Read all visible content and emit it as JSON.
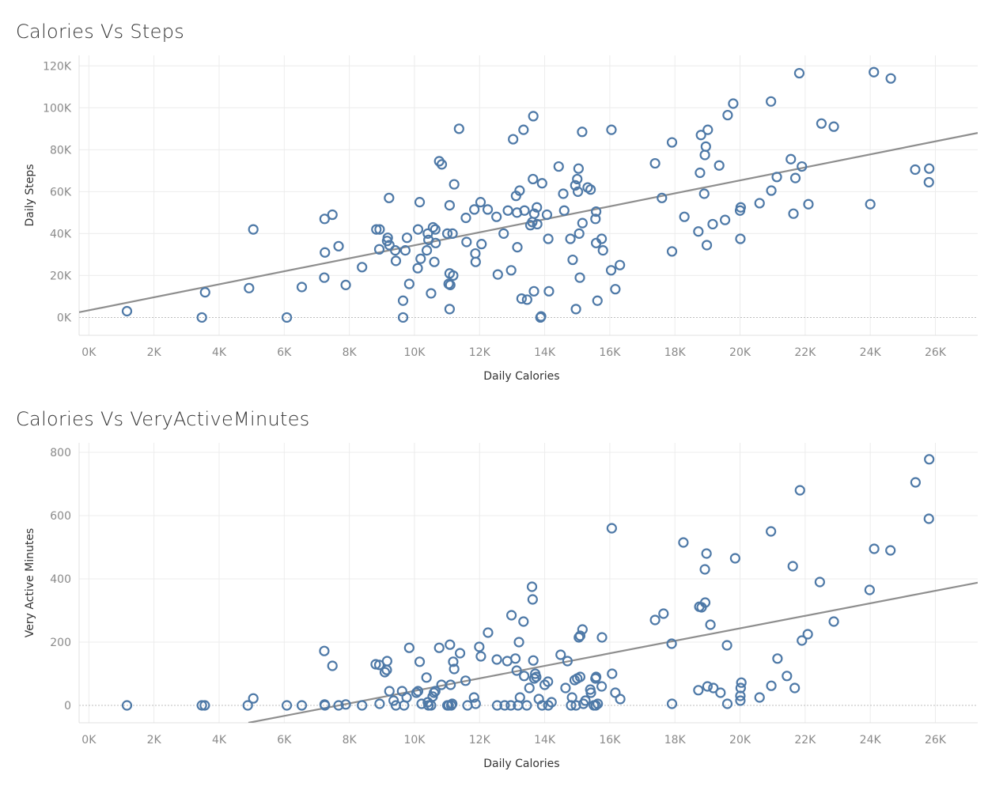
{
  "chart_data": [
    {
      "type": "scatter",
      "title": "Calories Vs Steps",
      "xlabel": "Daily Calories",
      "ylabel": "Daily Steps",
      "xlim": [
        -300,
        27300
      ],
      "ylim": [
        -8500,
        125000
      ],
      "x_ticks": [
        0,
        2000,
        4000,
        6000,
        8000,
        10000,
        12000,
        14000,
        16000,
        18000,
        20000,
        22000,
        24000,
        26000
      ],
      "x_tick_labels": [
        "0K",
        "2K",
        "4K",
        "6K",
        "8K",
        "10K",
        "12K",
        "14K",
        "16K",
        "18K",
        "20K",
        "22K",
        "24K",
        "26K"
      ],
      "y_ticks": [
        0,
        20000,
        40000,
        60000,
        80000,
        100000,
        120000
      ],
      "y_tick_labels": [
        "0K",
        "20K",
        "40K",
        "60K",
        "80K",
        "100K",
        "120K"
      ],
      "grid": true,
      "marker": "hollow-circle",
      "color": "#4e79a7",
      "trend_color": "#8e8e8e",
      "trendline": [
        [
          -300,
          2500
        ],
        [
          27300,
          88000
        ]
      ],
      "points": [
        [
          1170,
          3000
        ],
        [
          3470,
          0
        ],
        [
          3570,
          12000
        ],
        [
          4920,
          14000
        ],
        [
          5050,
          42000
        ],
        [
          6080,
          0
        ],
        [
          6540,
          14500
        ],
        [
          7240,
          47000
        ],
        [
          7250,
          31000
        ],
        [
          7230,
          19000
        ],
        [
          7480,
          49000
        ],
        [
          7670,
          34000
        ],
        [
          7890,
          15500
        ],
        [
          8390,
          24000
        ],
        [
          8830,
          42000
        ],
        [
          8930,
          42000
        ],
        [
          8920,
          32500
        ],
        [
          9160,
          36500
        ],
        [
          9180,
          38000
        ],
        [
          9220,
          57000
        ],
        [
          9230,
          34500
        ],
        [
          9410,
          32000
        ],
        [
          9430,
          27000
        ],
        [
          9650,
          8000
        ],
        [
          9650,
          0
        ],
        [
          9720,
          32000
        ],
        [
          9770,
          38000
        ],
        [
          9840,
          16000
        ],
        [
          10110,
          42000
        ],
        [
          10100,
          23500
        ],
        [
          10160,
          55000
        ],
        [
          10190,
          28000
        ],
        [
          10380,
          32000
        ],
        [
          10410,
          40000
        ],
        [
          10430,
          37000
        ],
        [
          10510,
          11500
        ],
        [
          10570,
          43000
        ],
        [
          10610,
          26500
        ],
        [
          10640,
          42000
        ],
        [
          10650,
          35500
        ],
        [
          10760,
          74500
        ],
        [
          10840,
          73000
        ],
        [
          11010,
          40000
        ],
        [
          11050,
          16000
        ],
        [
          11080,
          4000
        ],
        [
          11080,
          53500
        ],
        [
          11080,
          21000
        ],
        [
          11100,
          15500
        ],
        [
          11170,
          40000
        ],
        [
          11190,
          20000
        ],
        [
          11220,
          63500
        ],
        [
          11370,
          90000
        ],
        [
          11580,
          47500
        ],
        [
          11600,
          36000
        ],
        [
          11840,
          51500
        ],
        [
          11870,
          30500
        ],
        [
          11880,
          26500
        ],
        [
          12030,
          55000
        ],
        [
          12060,
          35000
        ],
        [
          12250,
          51500
        ],
        [
          12520,
          48000
        ],
        [
          12560,
          20500
        ],
        [
          12740,
          40000
        ],
        [
          12870,
          51000
        ],
        [
          12970,
          22500
        ],
        [
          13030,
          85000
        ],
        [
          13120,
          58000
        ],
        [
          13150,
          50000
        ],
        [
          13160,
          33500
        ],
        [
          13230,
          60500
        ],
        [
          13290,
          9000
        ],
        [
          13350,
          89500
        ],
        [
          13380,
          51000
        ],
        [
          13460,
          8500
        ],
        [
          13560,
          44000
        ],
        [
          13620,
          45500
        ],
        [
          13640,
          66000
        ],
        [
          13650,
          96000
        ],
        [
          13670,
          12500
        ],
        [
          13680,
          49500
        ],
        [
          13760,
          52500
        ],
        [
          13770,
          44500
        ],
        [
          13870,
          0
        ],
        [
          13890,
          500
        ],
        [
          13920,
          64000
        ],
        [
          14070,
          49000
        ],
        [
          14110,
          37500
        ],
        [
          14130,
          12500
        ],
        [
          14430,
          72000
        ],
        [
          14570,
          59000
        ],
        [
          14600,
          51000
        ],
        [
          14790,
          37500
        ],
        [
          14860,
          27500
        ],
        [
          14940,
          63000
        ],
        [
          14960,
          4000
        ],
        [
          15000,
          66000
        ],
        [
          15020,
          60000
        ],
        [
          15040,
          71000
        ],
        [
          15060,
          40000
        ],
        [
          15080,
          19000
        ],
        [
          15150,
          88500
        ],
        [
          15160,
          45000
        ],
        [
          15320,
          62000
        ],
        [
          15410,
          61000
        ],
        [
          15560,
          47000
        ],
        [
          15580,
          50500
        ],
        [
          15580,
          35500
        ],
        [
          15620,
          8000
        ],
        [
          15750,
          37500
        ],
        [
          15790,
          32000
        ],
        [
          16050,
          89500
        ],
        [
          16040,
          22500
        ],
        [
          16170,
          13500
        ],
        [
          16310,
          25000
        ],
        [
          17390,
          73500
        ],
        [
          17600,
          57000
        ],
        [
          17910,
          83500
        ],
        [
          17910,
          31500
        ],
        [
          18290,
          48000
        ],
        [
          18720,
          41000
        ],
        [
          18770,
          69000
        ],
        [
          18800,
          87000
        ],
        [
          18900,
          59000
        ],
        [
          18920,
          77500
        ],
        [
          18950,
          81500
        ],
        [
          19010,
          89500
        ],
        [
          18980,
          34500
        ],
        [
          19160,
          44500
        ],
        [
          19360,
          72500
        ],
        [
          19540,
          46500
        ],
        [
          19620,
          96500
        ],
        [
          19790,
          102000
        ],
        [
          20010,
          37500
        ],
        [
          20000,
          51000
        ],
        [
          20020,
          52500
        ],
        [
          20600,
          54500
        ],
        [
          20950,
          103000
        ],
        [
          20960,
          60500
        ],
        [
          21130,
          67000
        ],
        [
          21560,
          75500
        ],
        [
          21640,
          49500
        ],
        [
          21700,
          66500
        ],
        [
          21820,
          116500
        ],
        [
          21900,
          72000
        ],
        [
          22100,
          54000
        ],
        [
          22500,
          92500
        ],
        [
          22880,
          91000
        ],
        [
          24000,
          54000
        ],
        [
          24110,
          117000
        ],
        [
          24630,
          114000
        ],
        [
          25380,
          70500
        ],
        [
          25800,
          64500
        ],
        [
          25810,
          71000
        ]
      ]
    },
    {
      "type": "scatter",
      "title": "Calories Vs VeryActiveMinutes",
      "xlabel": "Daily Calories",
      "ylabel": "Very Active Minutes",
      "xlim": [
        -300,
        27300
      ],
      "ylim": [
        -55,
        830
      ],
      "x_ticks": [
        0,
        2000,
        4000,
        6000,
        8000,
        10000,
        12000,
        14000,
        16000,
        18000,
        20000,
        22000,
        24000,
        26000
      ],
      "x_tick_labels": [
        "0K",
        "2K",
        "4K",
        "6K",
        "8K",
        "10K",
        "12K",
        "14K",
        "16K",
        "18K",
        "20K",
        "22K",
        "24K",
        "26K"
      ],
      "y_ticks": [
        0,
        200,
        400,
        600,
        800
      ],
      "y_tick_labels": [
        "0",
        "200",
        "400",
        "600",
        "800"
      ],
      "grid": true,
      "marker": "hollow-circle",
      "color": "#4e79a7",
      "trend_color": "#8e8e8e",
      "trendline": [
        [
          4900,
          -55
        ],
        [
          27300,
          388
        ]
      ],
      "points": [
        [
          1170,
          0
        ],
        [
          3470,
          0
        ],
        [
          3560,
          0
        ],
        [
          4880,
          0
        ],
        [
          5050,
          22
        ],
        [
          6080,
          0
        ],
        [
          6540,
          0
        ],
        [
          7230,
          172
        ],
        [
          7240,
          3
        ],
        [
          7250,
          0
        ],
        [
          7480,
          125
        ],
        [
          7670,
          0
        ],
        [
          7890,
          3
        ],
        [
          8390,
          0
        ],
        [
          8810,
          130
        ],
        [
          8920,
          128
        ],
        [
          8930,
          5
        ],
        [
          9090,
          105
        ],
        [
          9150,
          112
        ],
        [
          9160,
          140
        ],
        [
          9230,
          45
        ],
        [
          9360,
          15
        ],
        [
          9430,
          0
        ],
        [
          9620,
          45
        ],
        [
          9680,
          0
        ],
        [
          9760,
          25
        ],
        [
          9840,
          182
        ],
        [
          10060,
          40
        ],
        [
          10110,
          45
        ],
        [
          10160,
          138
        ],
        [
          10220,
          5
        ],
        [
          10370,
          88
        ],
        [
          10410,
          10
        ],
        [
          10430,
          0
        ],
        [
          10510,
          0
        ],
        [
          10560,
          28
        ],
        [
          10600,
          40
        ],
        [
          10640,
          45
        ],
        [
          10760,
          182
        ],
        [
          10830,
          65
        ],
        [
          11010,
          0
        ],
        [
          11050,
          0
        ],
        [
          11090,
          192
        ],
        [
          11110,
          65
        ],
        [
          11130,
          0
        ],
        [
          11160,
          5
        ],
        [
          11190,
          138
        ],
        [
          11220,
          115
        ],
        [
          11400,
          165
        ],
        [
          11570,
          78
        ],
        [
          11630,
          0
        ],
        [
          11830,
          25
        ],
        [
          11880,
          5
        ],
        [
          11990,
          185
        ],
        [
          12040,
          155
        ],
        [
          12260,
          230
        ],
        [
          12530,
          145
        ],
        [
          12540,
          0
        ],
        [
          12770,
          0
        ],
        [
          12850,
          140
        ],
        [
          12960,
          0
        ],
        [
          12980,
          285
        ],
        [
          13100,
          148
        ],
        [
          13140,
          110
        ],
        [
          13180,
          0
        ],
        [
          13210,
          200
        ],
        [
          13240,
          25
        ],
        [
          13350,
          265
        ],
        [
          13370,
          93
        ],
        [
          13450,
          0
        ],
        [
          13530,
          55
        ],
        [
          13610,
          375
        ],
        [
          13630,
          335
        ],
        [
          13650,
          142
        ],
        [
          13680,
          85
        ],
        [
          13710,
          100
        ],
        [
          13740,
          90
        ],
        [
          13820,
          20
        ],
        [
          13920,
          0
        ],
        [
          14000,
          65
        ],
        [
          14100,
          75
        ],
        [
          14110,
          0
        ],
        [
          14210,
          10
        ],
        [
          14490,
          160
        ],
        [
          14640,
          55
        ],
        [
          14700,
          140
        ],
        [
          14810,
          0
        ],
        [
          14840,
          25
        ],
        [
          14920,
          80
        ],
        [
          14960,
          0
        ],
        [
          15000,
          85
        ],
        [
          15050,
          215
        ],
        [
          15090,
          220
        ],
        [
          15090,
          90
        ],
        [
          15160,
          240
        ],
        [
          15190,
          5
        ],
        [
          15250,
          15
        ],
        [
          15400,
          50
        ],
        [
          15420,
          40
        ],
        [
          15510,
          0
        ],
        [
          15560,
          85
        ],
        [
          15570,
          0
        ],
        [
          15580,
          90
        ],
        [
          15630,
          5
        ],
        [
          15750,
          60
        ],
        [
          15760,
          215
        ],
        [
          16060,
          560
        ],
        [
          16070,
          100
        ],
        [
          16170,
          40
        ],
        [
          16320,
          20
        ],
        [
          17390,
          270
        ],
        [
          17650,
          290
        ],
        [
          17900,
          195
        ],
        [
          17910,
          5
        ],
        [
          18260,
          515
        ],
        [
          18720,
          48
        ],
        [
          18750,
          312
        ],
        [
          18820,
          310
        ],
        [
          18920,
          430
        ],
        [
          18930,
          325
        ],
        [
          18970,
          480
        ],
        [
          19000,
          60
        ],
        [
          19090,
          255
        ],
        [
          19180,
          55
        ],
        [
          19400,
          40
        ],
        [
          19600,
          190
        ],
        [
          19610,
          5
        ],
        [
          19850,
          465
        ],
        [
          20010,
          15
        ],
        [
          20010,
          30
        ],
        [
          20020,
          55
        ],
        [
          20040,
          72
        ],
        [
          20600,
          25
        ],
        [
          20950,
          550
        ],
        [
          20960,
          62
        ],
        [
          21150,
          148
        ],
        [
          21440,
          93
        ],
        [
          21620,
          440
        ],
        [
          21680,
          55
        ],
        [
          21840,
          680
        ],
        [
          21900,
          205
        ],
        [
          22080,
          225
        ],
        [
          22450,
          390
        ],
        [
          22880,
          265
        ],
        [
          23980,
          365
        ],
        [
          24120,
          495
        ],
        [
          24620,
          490
        ],
        [
          25390,
          705
        ],
        [
          25800,
          590
        ],
        [
          25810,
          778
        ]
      ]
    }
  ]
}
